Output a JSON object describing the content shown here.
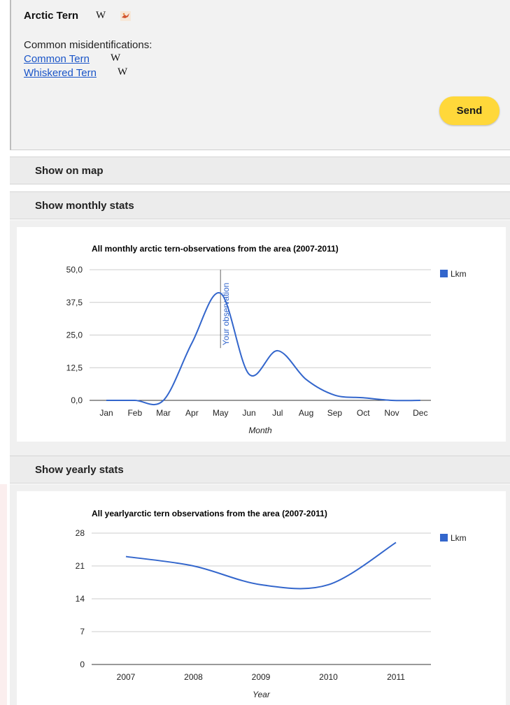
{
  "species": {
    "title": "Arctic Tern",
    "wiki_icon": "W",
    "bird_icon": "bird-icon"
  },
  "misidentifications": {
    "label": "Common misidentifications:",
    "items": [
      {
        "name": "Common Tern",
        "wiki_icon": "W"
      },
      {
        "name": "Whiskered Tern",
        "wiki_icon": "W"
      }
    ]
  },
  "send_label": "Send",
  "sections": {
    "map": "Show on map",
    "monthly": "Show monthly stats",
    "yearly": "Show yearly stats"
  },
  "colors": {
    "series": "#3366cc",
    "send_button": "#ffd83a",
    "link": "#1a55c8"
  },
  "chart_data": [
    {
      "type": "line",
      "title": "All monthly arctic tern-observations from the area (2007-2011)",
      "xlabel": "Month",
      "ylabel": "",
      "categories": [
        "Jan",
        "Feb",
        "Mar",
        "Apr",
        "May",
        "Jun",
        "Jul",
        "Aug",
        "Sep",
        "Oct",
        "Nov",
        "Dec"
      ],
      "series": [
        {
          "name": "Lkm",
          "values": [
            0,
            0,
            0,
            22,
            41,
            10,
            19,
            8,
            2,
            1,
            0,
            0
          ]
        }
      ],
      "y_ticks": [
        "50,0",
        "37,5",
        "25,0",
        "12,5",
        "0,0"
      ],
      "ylim": [
        0,
        50
      ],
      "grid": true,
      "legend": "right",
      "annotation": {
        "label": "Your observation",
        "category": "May"
      }
    },
    {
      "type": "line",
      "title": "All yearlyarctic tern observations from the area (2007-2011)",
      "xlabel": "Year",
      "ylabel": "",
      "categories": [
        "2007",
        "2008",
        "2009",
        "2010",
        "2011"
      ],
      "series": [
        {
          "name": "Lkm",
          "values": [
            23,
            21,
            17,
            17,
            26
          ]
        }
      ],
      "y_ticks": [
        "28",
        "21",
        "14",
        "7",
        "0"
      ],
      "ylim": [
        0,
        28
      ],
      "grid": true,
      "legend": "right"
    }
  ]
}
